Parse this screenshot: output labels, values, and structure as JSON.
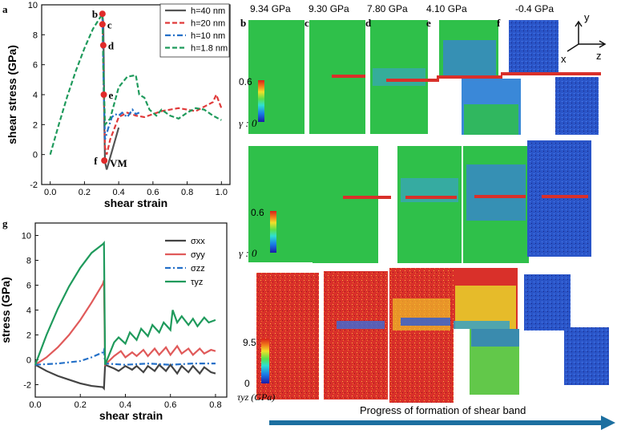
{
  "panel_labels": {
    "a": "a",
    "g": "g"
  },
  "chart_data": [
    {
      "type": "line",
      "xlabel": "shear strain",
      "ylabel": "shear stress (GPa)",
      "xlim": [
        -0.05,
        1.05
      ],
      "ylim": [
        -2,
        10
      ],
      "xticks": [
        "0.0",
        "0.2",
        "0.4",
        "0.6",
        "0.8",
        "1.0"
      ],
      "yticks": [
        "-2",
        "0",
        "2",
        "4",
        "6",
        "8",
        "10"
      ],
      "legend_position": "top-right",
      "series": [
        {
          "name": "h=40 nm",
          "color": "#555555",
          "dash": "solid",
          "x": [
            0.305,
            0.31,
            0.313,
            0.316,
            0.32,
            0.33,
            0.34,
            0.36,
            0.38,
            0.4
          ],
          "y": [
            9.3,
            8.8,
            6.0,
            2.0,
            -0.5,
            -1.0,
            -0.6,
            0.2,
            1.0,
            1.8
          ]
        },
        {
          "name": "h=20 nm",
          "color": "#e03a3a",
          "dash": "dash",
          "x": [
            0.305,
            0.313,
            0.32,
            0.33,
            0.35,
            0.4,
            0.45,
            0.5,
            0.55,
            0.6,
            0.65,
            0.7,
            0.75,
            0.8,
            0.85,
            0.9,
            0.95,
            0.97,
            1.0
          ],
          "y": [
            9.3,
            4.0,
            0.5,
            0.0,
            1.0,
            2.5,
            2.8,
            2.6,
            2.5,
            2.7,
            2.9,
            3.0,
            3.1,
            3.0,
            2.9,
            3.2,
            3.5,
            4.0,
            3.1
          ]
        },
        {
          "name": "h=10 nm",
          "color": "#2470c8",
          "dash": "dashdot",
          "x": [
            0.305,
            0.313,
            0.32,
            0.34,
            0.36,
            0.38,
            0.4,
            0.42,
            0.45,
            0.48,
            0.5,
            0.52
          ],
          "y": [
            9.3,
            4.0,
            1.0,
            1.8,
            2.5,
            2.7,
            2.6,
            2.8,
            2.5,
            3.0,
            2.7,
            2.8
          ]
        },
        {
          "name": "h=1.8 nm",
          "color": "#1f9a5c",
          "dash": "dash",
          "x": [
            0.0,
            0.05,
            0.1,
            0.15,
            0.2,
            0.25,
            0.305,
            0.31,
            0.32,
            0.35,
            0.4,
            0.45,
            0.5,
            0.52,
            0.55,
            0.58,
            0.62,
            0.65,
            0.7,
            0.75,
            0.8,
            0.85,
            0.9,
            0.95,
            1.0
          ],
          "y": [
            0.0,
            2.0,
            3.9,
            5.6,
            7.1,
            8.4,
            9.4,
            6.0,
            2.0,
            2.4,
            4.5,
            5.2,
            5.3,
            4.0,
            3.8,
            3.0,
            2.6,
            3.0,
            2.6,
            2.4,
            2.8,
            3.1,
            3.0,
            2.6,
            2.3
          ]
        }
      ],
      "annotations": [
        {
          "label": "b",
          "x": 0.305,
          "y": 9.4
        },
        {
          "label": "c",
          "x": 0.305,
          "y": 8.7
        },
        {
          "label": "d",
          "x": 0.31,
          "y": 7.3
        },
        {
          "label": "e",
          "x": 0.313,
          "y": 4.0
        },
        {
          "label": "f",
          "x": 0.316,
          "y": -0.4
        },
        {
          "label": "VM",
          "x": 0.33,
          "y": -0.4
        }
      ]
    },
    {
      "type": "line",
      "xlabel": "shear strain",
      "ylabel": "stress (GPa)",
      "xlim": [
        0.0,
        0.85
      ],
      "ylim": [
        -3,
        11
      ],
      "xticks": [
        "0.0",
        "0.2",
        "0.4",
        "0.6",
        "0.8"
      ],
      "yticks": [
        "-2",
        "0",
        "2",
        "4",
        "6",
        "8",
        "10"
      ],
      "legend_position": "top-right",
      "series": [
        {
          "name": "σxx",
          "color": "#444444",
          "dash": "solid",
          "x": [
            0.0,
            0.05,
            0.1,
            0.15,
            0.2,
            0.25,
            0.3,
            0.305,
            0.31,
            0.35,
            0.37,
            0.4,
            0.43,
            0.45,
            0.48,
            0.5,
            0.53,
            0.55,
            0.58,
            0.6,
            0.63,
            0.65,
            0.68,
            0.7,
            0.73,
            0.75,
            0.78,
            0.8
          ],
          "y": [
            -0.4,
            -0.9,
            -1.3,
            -1.6,
            -1.9,
            -2.1,
            -2.2,
            -2.3,
            -0.4,
            -0.7,
            -0.9,
            -0.5,
            -0.8,
            -0.5,
            -1.0,
            -0.5,
            -0.9,
            -0.4,
            -0.9,
            -0.4,
            -1.1,
            -0.5,
            -1.0,
            -0.5,
            -1.1,
            -0.6,
            -1.0,
            -1.1
          ]
        },
        {
          "name": "σyy",
          "color": "#e05a5a",
          "dash": "solid",
          "x": [
            0.0,
            0.05,
            0.1,
            0.15,
            0.2,
            0.25,
            0.3,
            0.305,
            0.31,
            0.35,
            0.38,
            0.4,
            0.43,
            0.45,
            0.48,
            0.5,
            0.53,
            0.55,
            0.58,
            0.6,
            0.63,
            0.65,
            0.68,
            0.7,
            0.73,
            0.75,
            0.78,
            0.8
          ],
          "y": [
            -0.4,
            0.2,
            1.0,
            2.0,
            3.2,
            4.6,
            6.1,
            6.4,
            -0.4,
            0.3,
            0.7,
            0.2,
            0.6,
            0.3,
            0.8,
            0.3,
            0.9,
            0.4,
            1.0,
            0.4,
            1.1,
            0.5,
            0.9,
            0.4,
            0.9,
            0.5,
            0.8,
            0.7
          ]
        },
        {
          "name": "σzz",
          "color": "#2470c8",
          "dash": "dashdot",
          "x": [
            0.0,
            0.1,
            0.2,
            0.25,
            0.3,
            0.305,
            0.31,
            0.4,
            0.5,
            0.6,
            0.7,
            0.8
          ],
          "y": [
            -0.4,
            -0.3,
            -0.1,
            0.2,
            0.6,
            0.8,
            -0.3,
            -0.4,
            -0.3,
            -0.4,
            -0.3,
            -0.3
          ]
        },
        {
          "name": "τyz",
          "color": "#1f9a5c",
          "dash": "solid",
          "x": [
            0.0,
            0.05,
            0.1,
            0.15,
            0.2,
            0.25,
            0.3,
            0.305,
            0.31,
            0.35,
            0.37,
            0.4,
            0.42,
            0.45,
            0.47,
            0.5,
            0.52,
            0.55,
            0.57,
            0.6,
            0.61,
            0.63,
            0.65,
            0.68,
            0.7,
            0.72,
            0.75,
            0.77,
            0.8
          ],
          "y": [
            -0.4,
            2.0,
            4.1,
            5.9,
            7.4,
            8.6,
            9.3,
            9.4,
            -0.4,
            1.4,
            1.8,
            1.3,
            2.2,
            1.6,
            2.5,
            1.9,
            2.8,
            2.2,
            3.0,
            2.4,
            4.0,
            3.0,
            3.5,
            2.8,
            3.3,
            2.7,
            3.4,
            3.0,
            3.2
          ]
        }
      ]
    }
  ],
  "simulation": {
    "stress_values": [
      "9.34 GPa",
      "9.30 GPa",
      "7.80 GPa",
      "4.10 GPa",
      "-0.4 GPa"
    ],
    "column_letters": [
      "b",
      "c",
      "d",
      "e",
      "f"
    ],
    "axes_labels": {
      "y": "y",
      "x": "x",
      "z": "z"
    },
    "colorbar_strain": {
      "max": "0.6",
      "label": "γ : 0"
    },
    "colorbar_stress": {
      "max": "9.5",
      "min": "0",
      "label": "τyz (GPa)"
    },
    "progress_label": "Progress of formation of shear band"
  },
  "colors": {
    "green": "#2fc04a",
    "blue": "#2a55c8",
    "red": "#d9302a",
    "arrow": "#1c6fa0"
  }
}
